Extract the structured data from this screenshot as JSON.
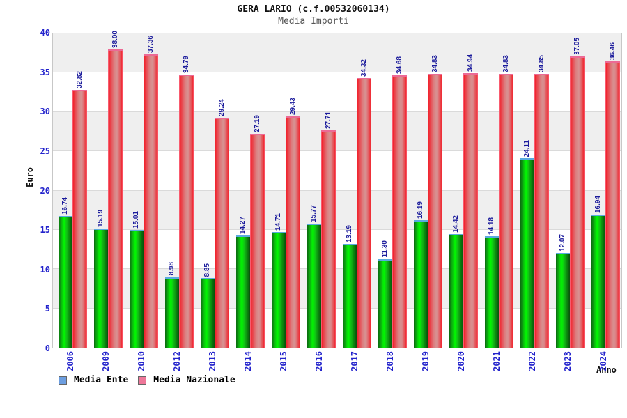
{
  "chart_data": {
    "type": "bar",
    "title": "GERA LARIO (c.f.00532060134)",
    "subtitle": "Media Importi",
    "xlabel": "Anno",
    "ylabel": "Euro",
    "ylim": [
      0,
      40
    ],
    "ytick_step": 5,
    "y_ticks": [
      0,
      5,
      10,
      15,
      20,
      25,
      30,
      35,
      40
    ],
    "grid": true,
    "legend_position": "bottom-left",
    "categories": [
      "2006",
      "2009",
      "2010",
      "2012",
      "2013",
      "2014",
      "2015",
      "2016",
      "2017",
      "2018",
      "2019",
      "2020",
      "2021",
      "2022",
      "2023",
      "2024"
    ],
    "series": [
      {
        "name": "Media Ente",
        "bar_color": "#00cc00",
        "cap_color": "#59aadf",
        "legend_marker_color": "#6d9ee0",
        "values": [
          "16.74",
          "15.19",
          "15.01",
          "8.98",
          "8.85",
          "14.27",
          "14.71",
          "15.77",
          "13.19",
          "11.30",
          "16.19",
          "14.42",
          "14.18",
          "24.11",
          "12.07",
          "16.94"
        ]
      },
      {
        "name": "Media Nazionale",
        "bar_color": "#e8333d",
        "cap_color": "#ec6a95",
        "legend_marker_color": "#ee7799",
        "values": [
          "32.82",
          "38.00",
          "37.36",
          "34.79",
          "29.24",
          "27.19",
          "29.43",
          "27.71",
          "34.32",
          "34.68",
          "34.83",
          "34.94",
          "34.83",
          "34.85",
          "37.05",
          "36.46"
        ]
      }
    ],
    "colors": {
      "axis_tick_label": "#2323cc",
      "value_label": "#1c1c9c",
      "band_gray": "#efefef",
      "band_white": "#ffffff",
      "gridline": "#dadada",
      "title_text": "#111111",
      "subtitle_text": "#555555"
    }
  }
}
